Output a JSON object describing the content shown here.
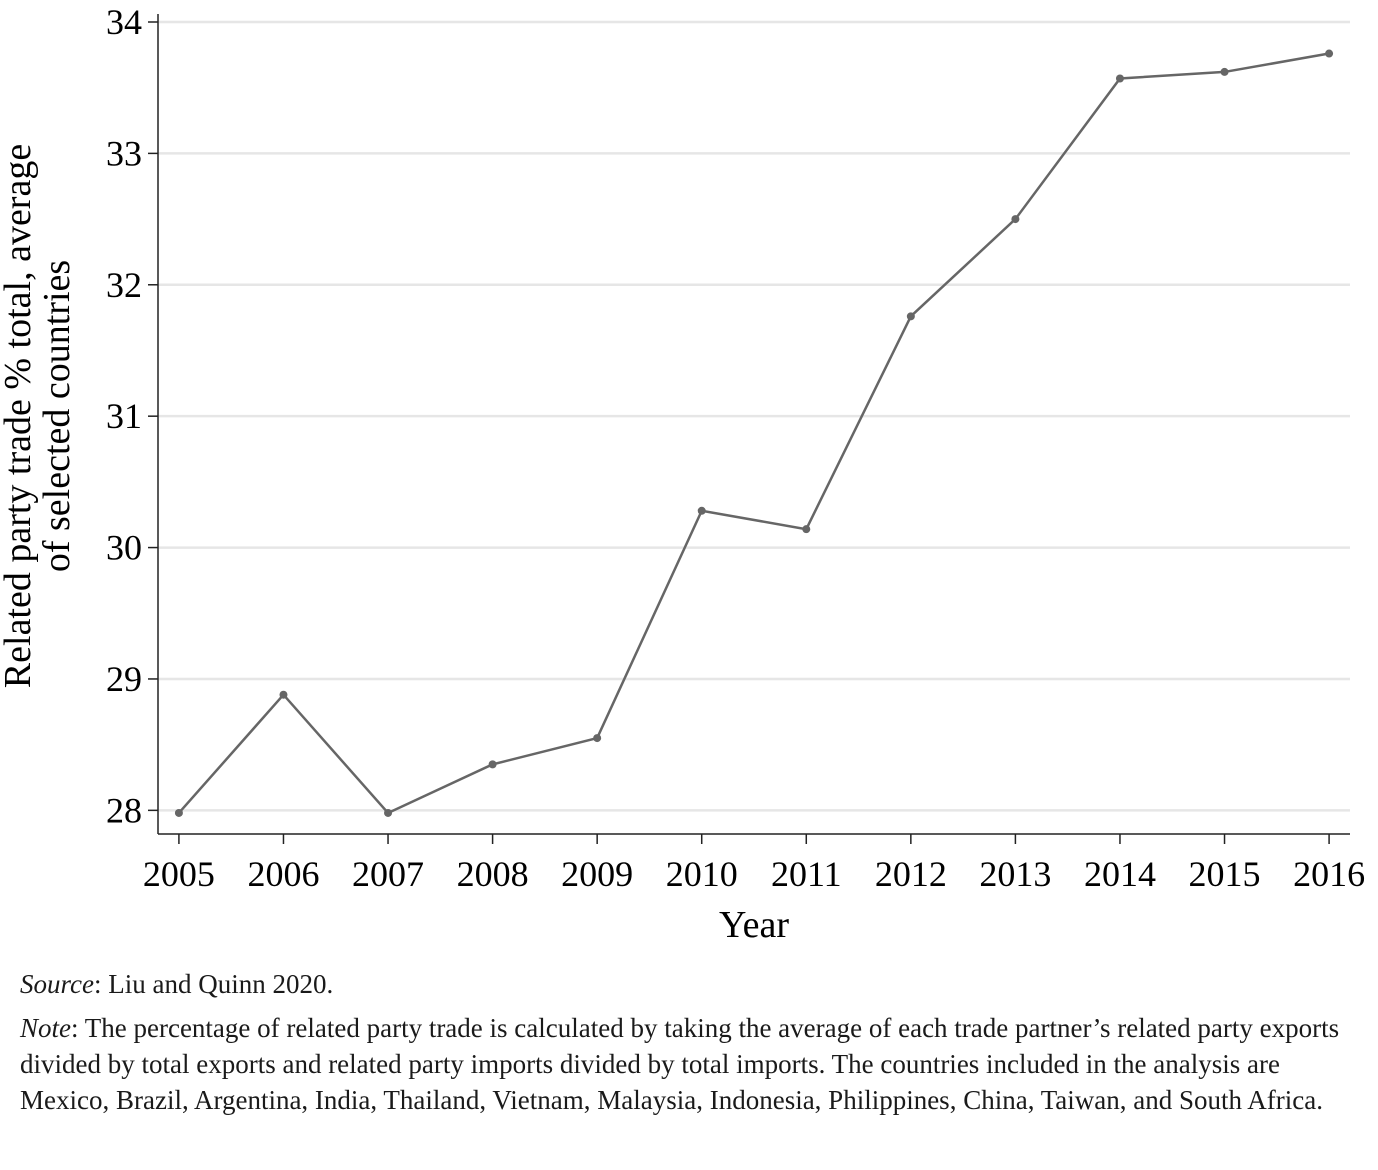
{
  "chart_data": {
    "type": "line",
    "ylabel": [
      "Related party trade % total, average",
      "of selected countries"
    ],
    "xlabel": "Year",
    "x": [
      2005,
      2006,
      2007,
      2008,
      2009,
      2010,
      2011,
      2012,
      2013,
      2014,
      2015,
      2016
    ],
    "series": [
      {
        "color": "#666666",
        "values": [
          27.98,
          28.88,
          27.98,
          28.35,
          28.55,
          30.28,
          30.14,
          31.76,
          32.5,
          33.57,
          33.62,
          33.76
        ]
      }
    ],
    "xlim": [
      2004.8,
      2016.2
    ],
    "xticks": [
      2005,
      2006,
      2007,
      2008,
      2009,
      2010,
      2011,
      2012,
      2013,
      2014,
      2015,
      2016
    ],
    "ylim": [
      27.82,
      34
    ],
    "yticks": [
      28,
      29,
      30,
      31,
      32,
      33,
      34
    ],
    "grid": true
  },
  "notes": {
    "source": {
      "label": "Source",
      "text": ": Liu and Quinn 2020."
    },
    "note": {
      "label": "Note",
      "text": ": The percentage of related party trade is calculated by taking the average of each trade partner’s related party exports divided by total exports and related party imports divided by total imports. The countries included in the analysis are Mexico, Brazil, Argentina, India, Thailand, Vietnam, Malaysia, Indonesia, Philippines, China, Taiwan, and South Africa."
    }
  }
}
